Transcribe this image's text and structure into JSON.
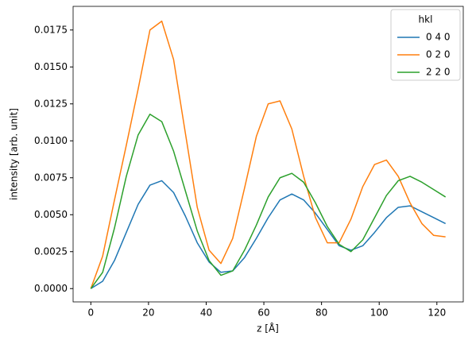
{
  "chart_data": {
    "type": "line",
    "x_label": "z [Å]",
    "y_label": "intensity [arb. unit]",
    "x": [
      0,
      4.1,
      8.2,
      12.3,
      16.4,
      20.5,
      24.6,
      28.7,
      32.8,
      36.9,
      41,
      45.1,
      49.2,
      53.3,
      57.4,
      61.5,
      65.6,
      69.7,
      73.8,
      77.9,
      82,
      86.1,
      90.2,
      94.3,
      98.4,
      102.5,
      106.6,
      110.7,
      114.8,
      118.9,
      123
    ],
    "series": [
      {
        "name": "0 4 0",
        "color": "#1f77b4",
        "values": [
          0,
          0.0005,
          0.0019,
          0.0038,
          0.0057,
          0.007,
          0.0073,
          0.0065,
          0.0049,
          0.0031,
          0.0018,
          0.0011,
          0.0012,
          0.0021,
          0.0034,
          0.0048,
          0.006,
          0.0064,
          0.006,
          0.0051,
          0.004,
          0.0029,
          0.0026,
          0.0029,
          0.0038,
          0.0048,
          0.0055,
          0.0056,
          0.0052,
          0.0048,
          0.0044
        ]
      },
      {
        "name": "0 2 0",
        "color": "#ff7f0e",
        "values": [
          0,
          0.0022,
          0.006,
          0.0097,
          0.0135,
          0.0175,
          0.0181,
          0.0155,
          0.0105,
          0.0055,
          0.0026,
          0.0017,
          0.0034,
          0.0068,
          0.0103,
          0.0125,
          0.0127,
          0.0108,
          0.0076,
          0.0048,
          0.0031,
          0.0031,
          0.0047,
          0.0069,
          0.0084,
          0.0087,
          0.0076,
          0.0058,
          0.0044,
          0.0036,
          0.0035
        ]
      },
      {
        "name": "2 2 0",
        "color": "#2ca02c",
        "values": [
          0,
          0.0011,
          0.0041,
          0.0076,
          0.0104,
          0.0118,
          0.0113,
          0.0093,
          0.0066,
          0.0039,
          0.0019,
          0.0009,
          0.0012,
          0.0026,
          0.0043,
          0.0062,
          0.0075,
          0.0078,
          0.0072,
          0.0058,
          0.0042,
          0.003,
          0.0025,
          0.0033,
          0.0048,
          0.0063,
          0.0073,
          0.0076,
          0.0072,
          0.0067,
          0.0062
        ]
      }
    ],
    "xlim": [
      -6.15,
      129.15
    ],
    "ylim": [
      -0.0009,
      0.0191
    ],
    "xticks": [
      0,
      20,
      40,
      60,
      80,
      100,
      120
    ],
    "yticks": [
      {
        "value": 0,
        "label": "0.0000"
      },
      {
        "value": 0.0025,
        "label": "0.0025"
      },
      {
        "value": 0.005,
        "label": "0.0050"
      },
      {
        "value": 0.0075,
        "label": "0.0075"
      },
      {
        "value": 0.01,
        "label": "0.0100"
      },
      {
        "value": 0.0125,
        "label": "0.0125"
      },
      {
        "value": 0.015,
        "label": "0.0150"
      },
      {
        "value": 0.0175,
        "label": "0.0175"
      }
    ],
    "legend": {
      "title": "hkl",
      "position": "upper right"
    }
  }
}
